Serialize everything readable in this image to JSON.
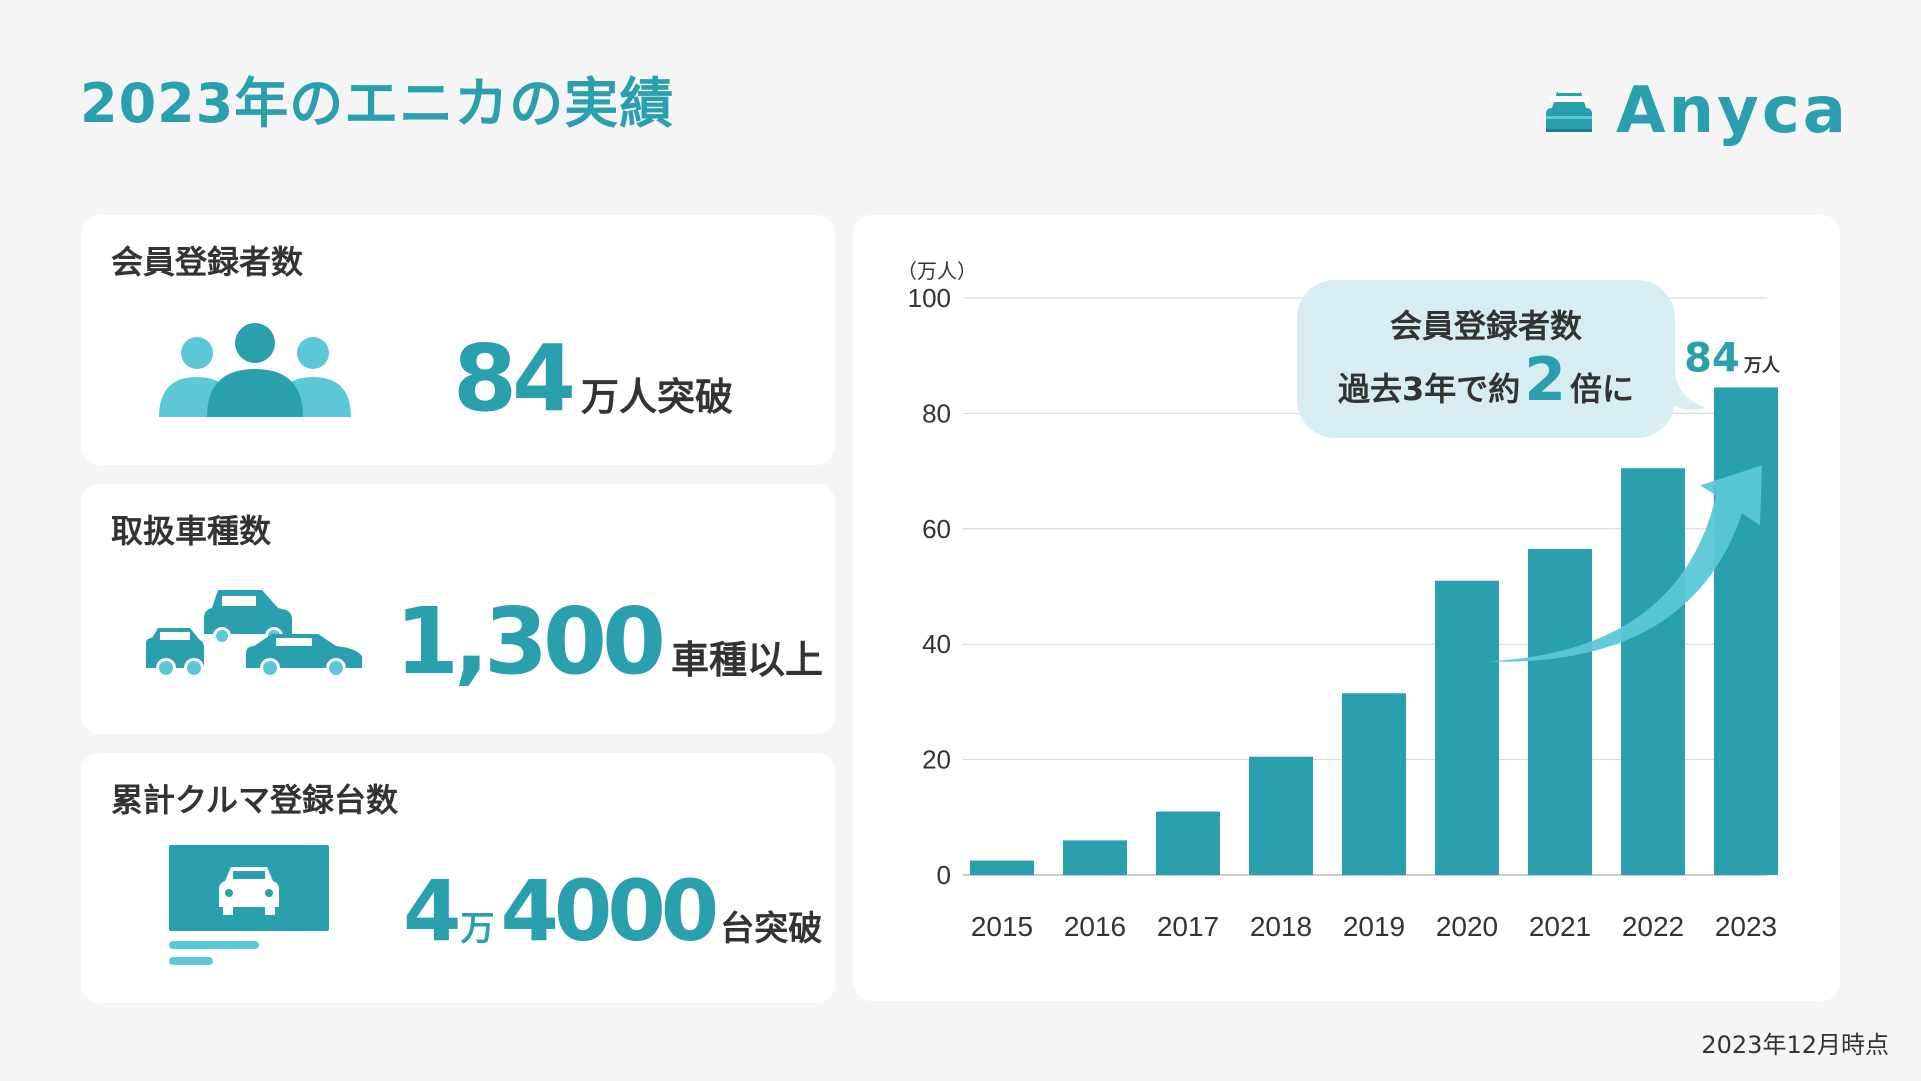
{
  "page": {
    "title": "2023年のエニカの実績",
    "logo_text": "Anyca",
    "footnote": "2023年12月時点"
  },
  "colors": {
    "accent": "#2a9fae",
    "accent_light": "#5bc7d7",
    "callout_bg": "#d7edf1",
    "text_dark": "#333333",
    "background": "#f5f5f5"
  },
  "cards": [
    {
      "title": "会員登録者数",
      "icon": "people-icon",
      "value": "84",
      "unit": "万人突破"
    },
    {
      "title": "取扱車種数",
      "icon": "cars-icon",
      "value": "1,300",
      "unit": "車種以上"
    },
    {
      "title": "累計クルマ登録台数",
      "icon": "car-listing-icon",
      "value_part1": "4",
      "unit_mid": "万",
      "value_part2": "4000",
      "unit_end": "台突破"
    }
  ],
  "callout": {
    "line1": "会員登録者数",
    "line2_prefix": "過去3年で約",
    "line2_highlight": "2",
    "line2_suffix": "倍に"
  },
  "chart_data": {
    "type": "bar",
    "categories": [
      "2015",
      "2016",
      "2017",
      "2018",
      "2019",
      "2020",
      "2021",
      "2022",
      "2023"
    ],
    "values": [
      2.5,
      6,
      11,
      20.5,
      31.5,
      51,
      56.5,
      70.5,
      84.5
    ],
    "unit_label": "（万人）",
    "ylim": [
      0,
      100
    ],
    "yticks": [
      0,
      20,
      40,
      60,
      80,
      100
    ],
    "ytick_labels": [
      "0",
      "20",
      "40",
      "60",
      "80",
      "100"
    ],
    "data_labels": [
      {
        "category": "2023",
        "value_text": "84",
        "unit_text": "万人"
      }
    ],
    "grid": true,
    "trend_arrow": true
  }
}
